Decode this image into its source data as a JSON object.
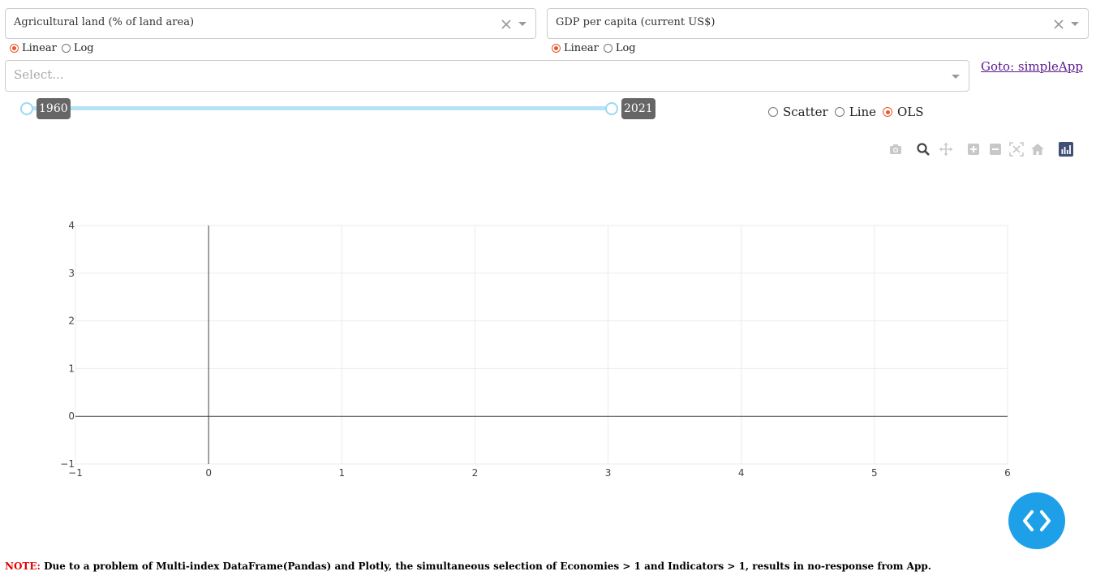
{
  "x_axis_dropdown": {
    "value": "Agricultural land (% of land area)"
  },
  "y_axis_dropdown": {
    "value": "GDP per capita (current US$)"
  },
  "x_scale": {
    "options": [
      "Linear",
      "Log"
    ],
    "selected": "Linear"
  },
  "y_scale": {
    "options": [
      "Linear",
      "Log"
    ],
    "selected": "Linear"
  },
  "economy_select": {
    "placeholder": "Select..."
  },
  "link": {
    "label": "Goto: simpleApp"
  },
  "year_slider": {
    "min_label": "1960",
    "max_label": "2021",
    "min": 1960,
    "max": 2021,
    "selected_min": 1960,
    "selected_max": 2021
  },
  "plot_type": {
    "options": [
      "Scatter",
      "Line",
      "OLS"
    ],
    "selected": "OLS"
  },
  "modebar": [
    "camera-icon",
    "zoom-icon",
    "pan-icon",
    "zoom-in-icon",
    "zoom-out-icon",
    "autoscale-icon",
    "reset-axes-icon",
    "plotly-logo-icon"
  ],
  "chart_data": {
    "type": "scatter",
    "x": [],
    "y": [],
    "xlim": [
      -1,
      6
    ],
    "ylim": [
      -1,
      4
    ],
    "x_ticks": [
      "−1",
      "0",
      "1",
      "2",
      "3",
      "4",
      "5",
      "6"
    ],
    "y_ticks": [
      "−1",
      "0",
      "1",
      "2",
      "3",
      "4"
    ],
    "grid": true
  },
  "note": {
    "label": "NOTE:",
    "text": " Due to a problem of Multi-index DataFrame(Pandas) and Plotly, the simultaneous selection of Economies > 1 and Indicators > 1, results in no-response from App."
  },
  "colors": {
    "accent": "#e8562a",
    "slider": "#b3e3f5",
    "fab": "#1ea0e8",
    "note_label": "#e00000"
  }
}
